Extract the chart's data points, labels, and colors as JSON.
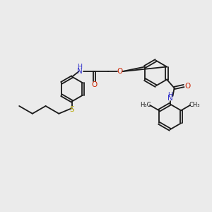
{
  "background_color": "#ebebeb",
  "bond_color": "#1a1a1a",
  "atom_colors": {
    "N": "#3333cc",
    "O": "#cc2200",
    "S": "#b8a800",
    "H": "#3333cc",
    "C": "#1a1a1a"
  },
  "figsize": [
    3.0,
    3.0
  ],
  "dpi": 100,
  "xlim": [
    0,
    10
  ],
  "ylim": [
    0,
    10
  ]
}
